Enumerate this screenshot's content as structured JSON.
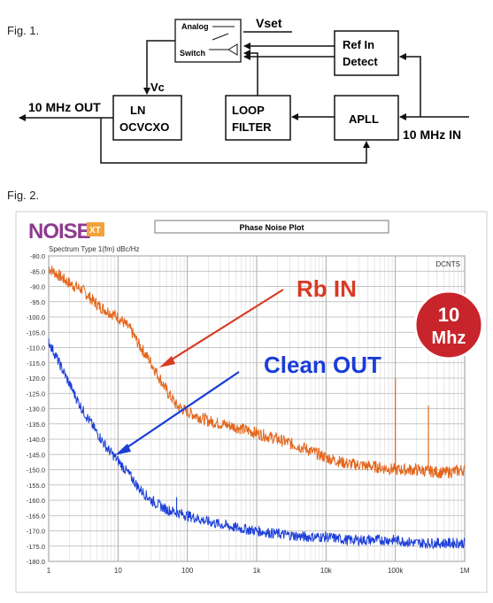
{
  "fig1": {
    "caption": "Fig. 1.",
    "analog": "Analog",
    "switch": "Switch",
    "vset": "Vset",
    "vc": "Vc",
    "ln_line1": "LN",
    "ln_line2": "OCVCXO",
    "loop_line1": "LOOP",
    "loop_line2": "FILTER",
    "ref_line1": "Ref In",
    "ref_line2": "Detect",
    "apll": "APLL",
    "out_label": "10 MHz OUT",
    "in_label": "10 MHz IN"
  },
  "fig2": {
    "caption": "Fig. 2.",
    "logo_main": "NOISE",
    "logo_badge": "XT",
    "plot_title": "Phase Noise Plot",
    "spectrum_label": "Spectrum Type  1(fm) dBc/Hz",
    "corner_label": "DCNTS",
    "rb_label": "Rb IN",
    "clean_label": "Clean OUT",
    "badge_line1": "10",
    "badge_line2": "Mhz"
  },
  "chart_data": {
    "type": "line",
    "title": "Phase Noise Plot",
    "ylabel": "Spectrum Type  1(fm) dBc/Hz",
    "xscale": "log",
    "xlim": [
      1,
      1000000
    ],
    "ylim": [
      -180,
      -80
    ],
    "xticks": [
      1,
      10,
      100,
      1000,
      10000,
      100000,
      1000000
    ],
    "xtick_labels": [
      "1",
      "10",
      "100",
      "1k",
      "10k",
      "100k",
      "1M"
    ],
    "yticks": [
      -80,
      -85,
      -90,
      -95,
      -100,
      -105,
      -110,
      -115,
      -120,
      -125,
      -130,
      -135,
      -140,
      -145,
      -150,
      -155,
      -160,
      -165,
      -170,
      -175,
      -180
    ],
    "ytick_labels": [
      "-80.0",
      "-85.0",
      "-90.0",
      "-95.0",
      "-100.0",
      "-105.0",
      "-110.0",
      "-115.0",
      "-120.0",
      "-125.0",
      "-130.0",
      "-135.0",
      "-140.0",
      "-145.0",
      "-150.0",
      "-155.0",
      "-160.0",
      "-165.0",
      "-170.0",
      "-175.0",
      "-180.0"
    ],
    "grid": true,
    "series": [
      {
        "name": "Rb IN",
        "color": "#e2661c",
        "x": [
          1,
          2,
          3,
          5,
          7,
          10,
          15,
          20,
          30,
          50,
          70,
          100,
          200,
          500,
          1000,
          2000,
          5000,
          10000,
          20000,
          50000,
          100000,
          200000,
          500000,
          1000000
        ],
        "y": [
          -84,
          -89,
          -91,
          -96,
          -98,
          -100,
          -104,
          -109,
          -115,
          -124,
          -129,
          -131,
          -134,
          -136,
          -138,
          -140,
          -143,
          -146,
          -148,
          -149,
          -150,
          -150,
          -151,
          -150
        ]
      },
      {
        "name": "Clean OUT",
        "color": "#1c3fd8",
        "x": [
          1,
          2,
          3,
          5,
          7,
          10,
          15,
          20,
          30,
          50,
          70,
          100,
          200,
          500,
          1000,
          2000,
          5000,
          10000,
          20000,
          50000,
          100000,
          200000,
          500000,
          1000000
        ],
        "y": [
          -108,
          -122,
          -130,
          -138,
          -143,
          -147,
          -152,
          -156,
          -160,
          -163,
          -164,
          -165,
          -167,
          -169,
          -170,
          -171,
          -172,
          -172,
          -173,
          -173,
          -173,
          -174,
          -174,
          -174
        ]
      }
    ],
    "spurs": [
      {
        "series": "Rb IN",
        "x": 100000,
        "y": -120
      },
      {
        "series": "Rb IN",
        "x": 300000,
        "y": -129
      },
      {
        "series": "Clean OUT",
        "x": 70,
        "y": -159
      }
    ]
  }
}
